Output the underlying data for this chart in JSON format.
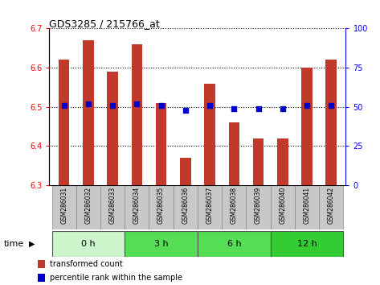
{
  "title": "GDS3285 / 215766_at",
  "samples": [
    "GSM286031",
    "GSM286032",
    "GSM286033",
    "GSM286034",
    "GSM286035",
    "GSM286036",
    "GSM286037",
    "GSM286038",
    "GSM286039",
    "GSM286040",
    "GSM286041",
    "GSM286042"
  ],
  "transformed_count": [
    6.62,
    6.67,
    6.59,
    6.66,
    6.51,
    6.37,
    6.56,
    6.46,
    6.42,
    6.42,
    6.6,
    6.62
  ],
  "percentile_rank": [
    51,
    52,
    51,
    52,
    51,
    48,
    51,
    49,
    49,
    49,
    51,
    51
  ],
  "ylim_left": [
    6.3,
    6.7
  ],
  "ylim_right": [
    0,
    100
  ],
  "yticks_left": [
    6.3,
    6.4,
    6.5,
    6.6,
    6.7
  ],
  "yticks_right": [
    0,
    25,
    50,
    75,
    100
  ],
  "bar_color": "#c0392b",
  "dot_color": "#0000cc",
  "bar_bottom": 6.3,
  "group_labels": [
    "0 h",
    "3 h",
    "6 h",
    "12 h"
  ],
  "group_starts": [
    0,
    3,
    6,
    9
  ],
  "group_ends": [
    3,
    6,
    9,
    12
  ],
  "group_colors": [
    "#ccf5cc",
    "#55dd55",
    "#55dd55",
    "#33cc33"
  ],
  "legend_bar_label": "transformed count",
  "legend_dot_label": "percentile rank within the sample",
  "time_label": "time",
  "background_color": "#ffffff",
  "tick_label_bg": "#c8c8c8",
  "bar_width": 0.45
}
